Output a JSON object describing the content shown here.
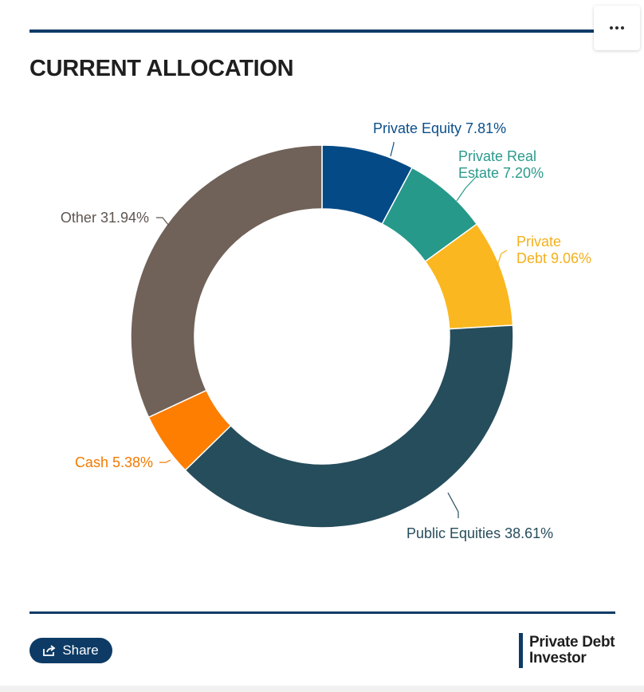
{
  "header": {
    "title": "CURRENT ALLOCATION",
    "menu_icon": "more-dots-icon"
  },
  "chart_data": {
    "type": "pie",
    "variant": "donut",
    "title": "CURRENT ALLOCATION",
    "slices": [
      {
        "label_lines": [
          "Private Equity 7.81%"
        ],
        "name": "Private Equity",
        "value": 7.81,
        "color": "#034a86",
        "label_color": "#0b4f8a"
      },
      {
        "label_lines": [
          "Private Real",
          "Estate 7.20%"
        ],
        "name": "Private Real Estate",
        "value": 7.2,
        "color": "#26998a",
        "label_color": "#2a9a8b"
      },
      {
        "label_lines": [
          "Private",
          "Debt 9.06%"
        ],
        "name": "Private Debt",
        "value": 9.06,
        "color": "#fbb71f",
        "label_color": "#f4b01b"
      },
      {
        "label_lines": [
          "Public Equities 38.61%"
        ],
        "name": "Public Equities",
        "value": 38.61,
        "color": "#264d5c",
        "label_color": "#264d5c"
      },
      {
        "label_lines": [
          "Cash 5.38%"
        ],
        "name": "Cash",
        "value": 5.38,
        "color": "#fd7e00",
        "label_color": "#f27a00"
      },
      {
        "label_lines": [
          "Other 31.94%"
        ],
        "name": "Other",
        "value": 31.94,
        "color": "#706259",
        "label_color": "#5e5550"
      }
    ]
  },
  "footer": {
    "share_label": "Share",
    "share_icon": "share-icon",
    "logo_line1": "Private Debt",
    "logo_line2": "Investor"
  },
  "colors": {
    "brand": "#0d3b66"
  }
}
